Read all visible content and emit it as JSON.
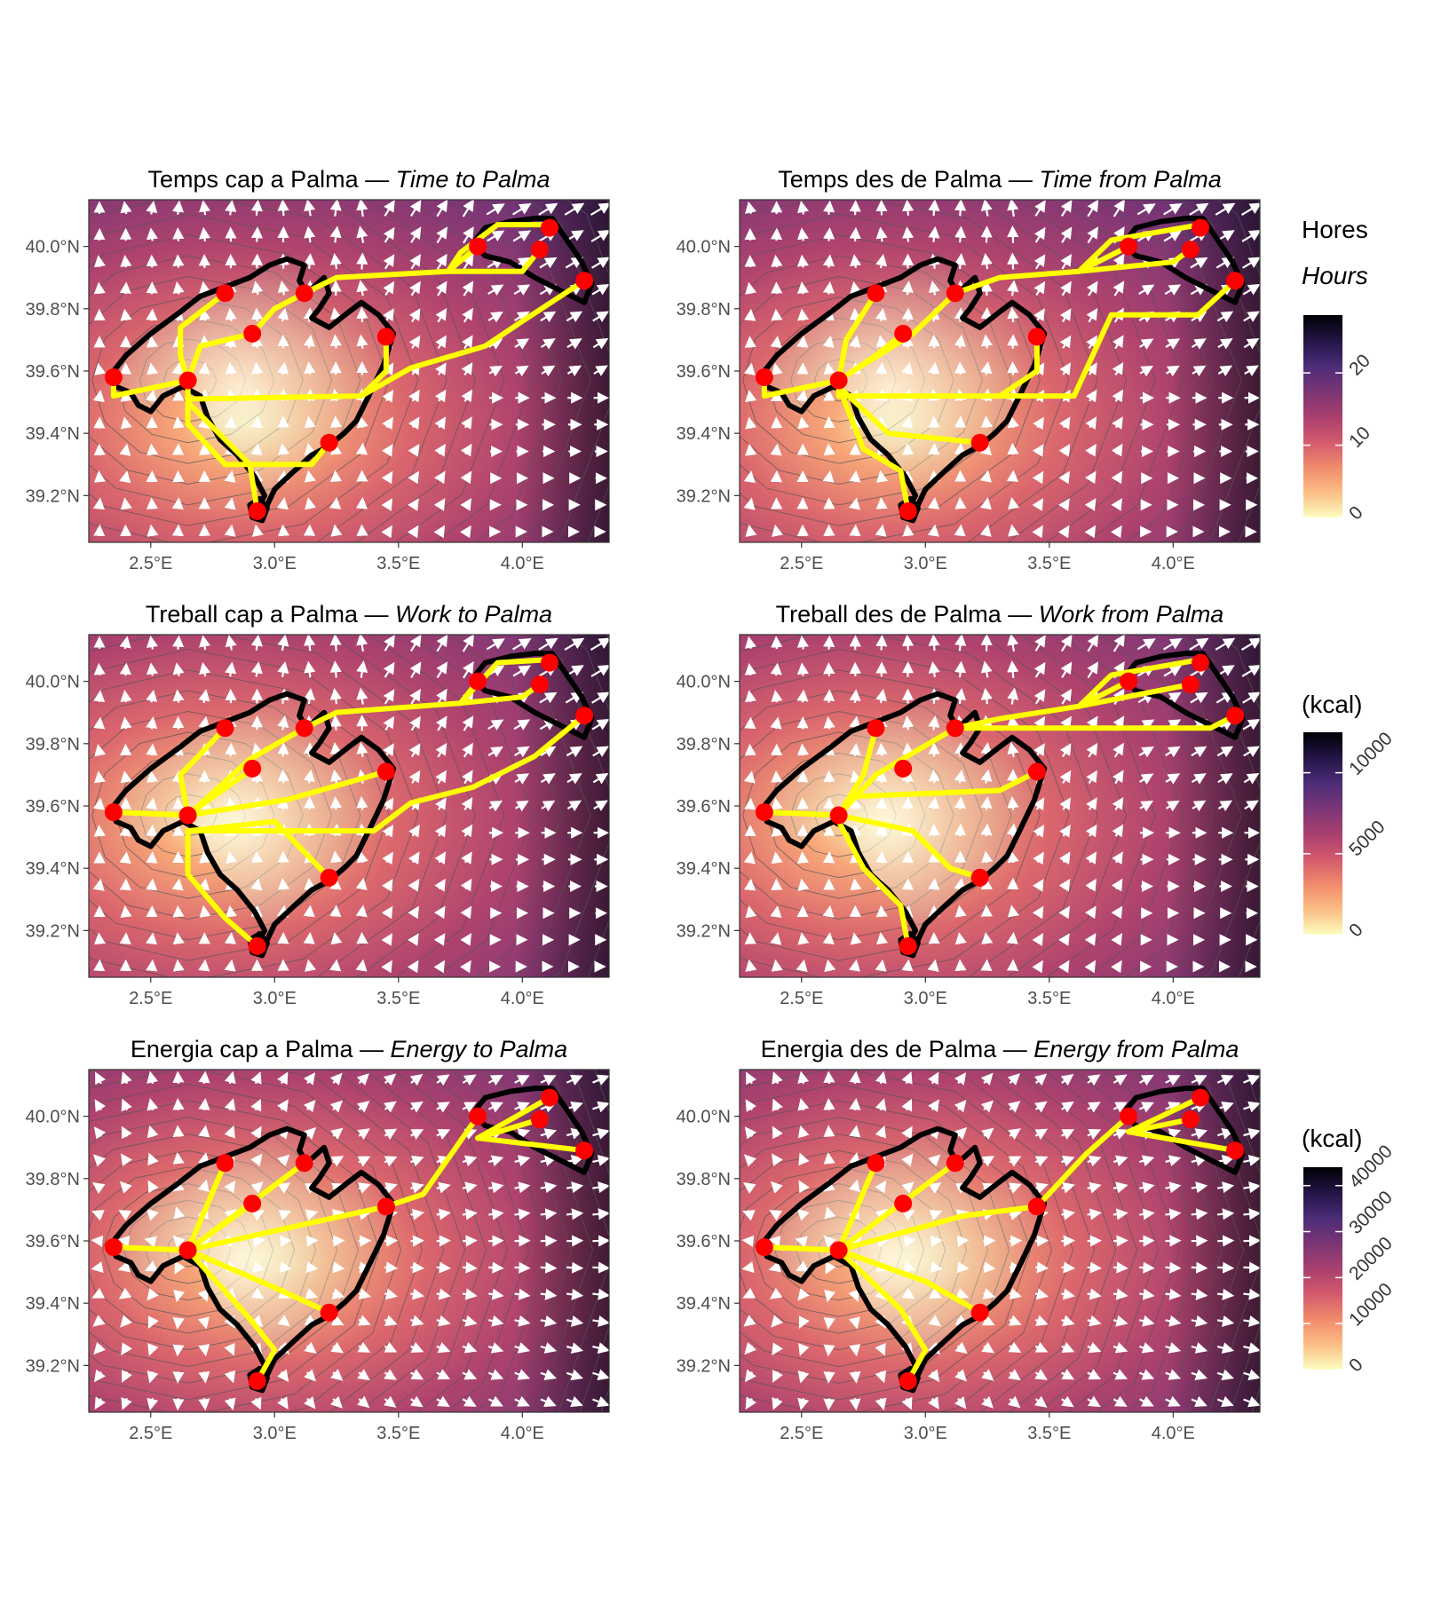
{
  "map": {
    "panels": [
      {
        "id": "time-to",
        "title_ca": "Temps cap a Palma",
        "title_en": "Time to Palma",
        "variable": "time",
        "direction": "to"
      },
      {
        "id": "time-from",
        "title_ca": "Temps des de Palma",
        "title_en": "Time from Palma",
        "variable": "time",
        "direction": "from"
      },
      {
        "id": "work-to",
        "title_ca": "Treball cap a Palma",
        "title_en": "Work to Palma",
        "variable": "work",
        "direction": "to"
      },
      {
        "id": "work-from",
        "title_ca": "Treball des de Palma",
        "title_en": "Work from Palma",
        "variable": "work",
        "direction": "from"
      },
      {
        "id": "energy-to",
        "title_ca": "Energia cap a Palma",
        "title_en": "Energy to Palma",
        "variable": "energy",
        "direction": "to"
      },
      {
        "id": "energy-from",
        "title_ca": "Energia des de Palma",
        "title_en": "Energy from Palma",
        "variable": "energy",
        "direction": "from"
      }
    ],
    "separator": "—",
    "x_ticks": [
      "2.5°E",
      "3.0°E",
      "3.5°E",
      "4.0°E"
    ],
    "y_ticks": [
      "40.0°N",
      "39.8°N",
      "39.6°N",
      "39.4°N",
      "39.2°N"
    ],
    "extent": {
      "lon": [
        2.25,
        4.35
      ],
      "lat": [
        39.05,
        40.15
      ]
    },
    "legends": [
      {
        "id": "hours",
        "title_ca": "Hores",
        "title_en": "Hours",
        "ticks": [
          "0",
          "10",
          "20"
        ],
        "tick_values": [
          0,
          10,
          20
        ],
        "max": 28
      },
      {
        "id": "work",
        "title_ca": "(kcal)",
        "title_en": "",
        "ticks": [
          "0",
          "5000",
          "10000"
        ],
        "tick_values": [
          0,
          5000,
          10000
        ],
        "max": 12500
      },
      {
        "id": "energy",
        "title_ca": "(kcal)",
        "title_en": "",
        "ticks": [
          "0",
          "10000",
          "20000",
          "30000",
          "40000"
        ],
        "tick_values": [
          0,
          10000,
          20000,
          30000,
          40000
        ],
        "max": 44000
      }
    ],
    "colors": {
      "scale": [
        "#fcfdbf",
        "#fcbd84",
        "#f08a6c",
        "#d3596d",
        "#a83f6e",
        "#7a3575",
        "#4b2c78",
        "#231445",
        "#000004"
      ],
      "route": "#ffff00",
      "city": "#ff0000",
      "coast": "#000000",
      "arrow": "#ffffff",
      "contour": "#555555"
    },
    "palma": {
      "lon": 2.65,
      "lat": 39.57
    },
    "destinations": [
      {
        "lon": 2.35,
        "lat": 39.58
      },
      {
        "lon": 2.8,
        "lat": 39.85
      },
      {
        "lon": 2.91,
        "lat": 39.72
      },
      {
        "lon": 3.12,
        "lat": 39.85
      },
      {
        "lon": 3.45,
        "lat": 39.71
      },
      {
        "lon": 3.22,
        "lat": 39.37
      },
      {
        "lon": 2.93,
        "lat": 39.15
      },
      {
        "lon": 3.82,
        "lat": 40.0
      },
      {
        "lon": 4.07,
        "lat": 39.99
      },
      {
        "lon": 4.11,
        "lat": 40.06
      },
      {
        "lon": 4.25,
        "lat": 39.89
      }
    ],
    "routes": {
      "time-to": [
        [
          [
            2.65,
            39.57
          ],
          [
            2.35,
            39.52
          ],
          [
            2.35,
            39.58
          ]
        ],
        [
          [
            2.65,
            39.57
          ],
          [
            2.62,
            39.65
          ],
          [
            2.62,
            39.74
          ],
          [
            2.8,
            39.85
          ]
        ],
        [
          [
            2.65,
            39.57
          ],
          [
            2.7,
            39.68
          ],
          [
            2.91,
            39.72
          ]
        ],
        [
          [
            2.91,
            39.72
          ],
          [
            3.0,
            39.8
          ],
          [
            3.12,
            39.85
          ]
        ],
        [
          [
            3.12,
            39.85
          ],
          [
            3.25,
            39.9
          ],
          [
            3.7,
            39.92
          ],
          [
            3.82,
            40.0
          ]
        ],
        [
          [
            3.7,
            39.92
          ],
          [
            3.75,
            39.98
          ],
          [
            3.9,
            40.07
          ],
          [
            4.11,
            40.07
          ]
        ],
        [
          [
            3.7,
            39.92
          ],
          [
            4.0,
            39.92
          ],
          [
            4.07,
            39.99
          ]
        ],
        [
          [
            2.65,
            39.57
          ],
          [
            2.65,
            39.51
          ],
          [
            3.35,
            39.52
          ],
          [
            3.45,
            39.6
          ],
          [
            3.45,
            39.71
          ]
        ],
        [
          [
            3.35,
            39.52
          ],
          [
            3.55,
            39.61
          ],
          [
            3.85,
            39.68
          ],
          [
            4.0,
            39.76
          ],
          [
            4.25,
            39.89
          ]
        ],
        [
          [
            2.65,
            39.57
          ],
          [
            2.65,
            39.43
          ],
          [
            2.8,
            39.3
          ],
          [
            3.15,
            39.3
          ],
          [
            3.22,
            39.37
          ]
        ],
        [
          [
            2.65,
            39.5
          ],
          [
            2.9,
            39.3
          ],
          [
            2.93,
            39.15
          ]
        ]
      ],
      "time-from": [
        [
          [
            2.65,
            39.57
          ],
          [
            2.35,
            39.52
          ],
          [
            2.35,
            39.58
          ]
        ],
        [
          [
            2.65,
            39.57
          ],
          [
            2.68,
            39.7
          ],
          [
            2.8,
            39.85
          ]
        ],
        [
          [
            2.65,
            39.57
          ],
          [
            2.8,
            39.65
          ],
          [
            2.91,
            39.72
          ]
        ],
        [
          [
            2.65,
            39.57
          ],
          [
            2.95,
            39.72
          ],
          [
            3.12,
            39.85
          ]
        ],
        [
          [
            3.12,
            39.85
          ],
          [
            3.3,
            39.9
          ],
          [
            3.62,
            39.92
          ],
          [
            3.75,
            40.02
          ],
          [
            4.11,
            40.07
          ]
        ],
        [
          [
            3.62,
            39.92
          ],
          [
            3.82,
            40.0
          ]
        ],
        [
          [
            3.62,
            39.92
          ],
          [
            4.0,
            39.95
          ],
          [
            4.07,
            39.99
          ]
        ],
        [
          [
            2.65,
            39.57
          ],
          [
            2.65,
            39.52
          ],
          [
            3.3,
            39.52
          ],
          [
            3.45,
            39.6
          ],
          [
            3.45,
            39.71
          ]
        ],
        [
          [
            3.3,
            39.52
          ],
          [
            3.6,
            39.52
          ],
          [
            3.75,
            39.78
          ],
          [
            4.1,
            39.78
          ],
          [
            4.25,
            39.89
          ]
        ],
        [
          [
            2.65,
            39.55
          ],
          [
            2.85,
            39.4
          ],
          [
            3.22,
            39.37
          ]
        ],
        [
          [
            2.65,
            39.55
          ],
          [
            2.75,
            39.35
          ],
          [
            2.9,
            39.28
          ],
          [
            2.93,
            39.15
          ]
        ]
      ],
      "work-to": [
        [
          [
            2.65,
            39.57
          ],
          [
            2.35,
            39.58
          ]
        ],
        [
          [
            2.65,
            39.57
          ],
          [
            2.62,
            39.7
          ],
          [
            2.8,
            39.85
          ]
        ],
        [
          [
            2.65,
            39.57
          ],
          [
            2.91,
            39.72
          ]
        ],
        [
          [
            2.65,
            39.57
          ],
          [
            2.9,
            39.75
          ],
          [
            3.12,
            39.85
          ]
        ],
        [
          [
            3.12,
            39.85
          ],
          [
            3.25,
            39.9
          ],
          [
            3.75,
            39.93
          ],
          [
            3.82,
            40.0
          ]
        ],
        [
          [
            3.75,
            39.93
          ],
          [
            3.9,
            40.06
          ],
          [
            4.11,
            40.07
          ]
        ],
        [
          [
            3.75,
            39.93
          ],
          [
            4.0,
            39.95
          ],
          [
            4.07,
            39.99
          ]
        ],
        [
          [
            2.65,
            39.57
          ],
          [
            3.05,
            39.62
          ],
          [
            3.45,
            39.71
          ]
        ],
        [
          [
            2.65,
            39.52
          ],
          [
            3.4,
            39.52
          ],
          [
            3.55,
            39.61
          ],
          [
            3.8,
            39.66
          ],
          [
            4.05,
            39.76
          ],
          [
            4.25,
            39.89
          ]
        ],
        [
          [
            2.65,
            39.52
          ],
          [
            3.0,
            39.55
          ],
          [
            3.22,
            39.37
          ]
        ],
        [
          [
            2.65,
            39.52
          ],
          [
            2.65,
            39.38
          ],
          [
            2.8,
            39.24
          ],
          [
            2.93,
            39.15
          ]
        ]
      ],
      "work-from": [
        [
          [
            2.65,
            39.57
          ],
          [
            2.35,
            39.58
          ]
        ],
        [
          [
            2.65,
            39.57
          ],
          [
            2.75,
            39.7
          ],
          [
            2.8,
            39.85
          ]
        ],
        [
          [
            2.65,
            39.57
          ],
          [
            2.8,
            39.7
          ],
          [
            3.12,
            39.85
          ]
        ],
        [
          [
            3.12,
            39.85
          ],
          [
            3.3,
            39.88
          ],
          [
            3.62,
            39.92
          ],
          [
            3.75,
            40.02
          ],
          [
            4.11,
            40.07
          ]
        ],
        [
          [
            3.62,
            39.92
          ],
          [
            3.82,
            40.0
          ]
        ],
        [
          [
            3.62,
            39.92
          ],
          [
            4.07,
            39.99
          ]
        ],
        [
          [
            3.12,
            39.85
          ],
          [
            4.15,
            39.85
          ],
          [
            4.25,
            39.89
          ]
        ],
        [
          [
            2.65,
            39.57
          ],
          [
            2.7,
            39.63
          ],
          [
            3.3,
            39.65
          ],
          [
            3.45,
            39.71
          ]
        ],
        [
          [
            2.65,
            39.57
          ],
          [
            2.95,
            39.52
          ],
          [
            3.1,
            39.4
          ],
          [
            3.22,
            39.37
          ]
        ],
        [
          [
            2.65,
            39.55
          ],
          [
            2.75,
            39.4
          ],
          [
            2.9,
            39.28
          ],
          [
            2.93,
            39.15
          ]
        ]
      ],
      "energy-to": [
        [
          [
            2.65,
            39.57
          ],
          [
            2.35,
            39.58
          ]
        ],
        [
          [
            2.65,
            39.57
          ],
          [
            2.8,
            39.85
          ]
        ],
        [
          [
            2.65,
            39.57
          ],
          [
            2.91,
            39.72
          ]
        ],
        [
          [
            2.65,
            39.57
          ],
          [
            3.12,
            39.85
          ]
        ],
        [
          [
            2.65,
            39.57
          ],
          [
            3.1,
            39.65
          ],
          [
            3.45,
            39.71
          ]
        ],
        [
          [
            3.45,
            39.71
          ],
          [
            3.6,
            39.75
          ],
          [
            3.82,
            40.0
          ]
        ],
        [
          [
            3.82,
            39.93
          ],
          [
            4.07,
            39.99
          ]
        ],
        [
          [
            3.82,
            39.93
          ],
          [
            4.11,
            40.06
          ]
        ],
        [
          [
            3.82,
            39.93
          ],
          [
            4.25,
            39.89
          ]
        ],
        [
          [
            2.65,
            39.57
          ],
          [
            3.0,
            39.45
          ],
          [
            3.22,
            39.37
          ]
        ],
        [
          [
            2.65,
            39.57
          ],
          [
            2.9,
            39.35
          ],
          [
            3.0,
            39.25
          ],
          [
            2.93,
            39.15
          ]
        ]
      ],
      "energy-from": [
        [
          [
            2.65,
            39.57
          ],
          [
            2.35,
            39.58
          ]
        ],
        [
          [
            2.65,
            39.57
          ],
          [
            2.8,
            39.85
          ]
        ],
        [
          [
            2.65,
            39.57
          ],
          [
            3.12,
            39.85
          ]
        ],
        [
          [
            2.65,
            39.57
          ],
          [
            3.15,
            39.68
          ],
          [
            3.45,
            39.71
          ]
        ],
        [
          [
            3.45,
            39.71
          ],
          [
            3.65,
            39.88
          ],
          [
            3.82,
            40.0
          ]
        ],
        [
          [
            3.82,
            39.95
          ],
          [
            4.11,
            40.06
          ]
        ],
        [
          [
            3.82,
            39.95
          ],
          [
            4.07,
            39.99
          ]
        ],
        [
          [
            3.82,
            39.95
          ],
          [
            4.25,
            39.89
          ]
        ],
        [
          [
            2.65,
            39.57
          ],
          [
            3.0,
            39.47
          ],
          [
            3.22,
            39.37
          ]
        ],
        [
          [
            2.65,
            39.57
          ],
          [
            2.9,
            39.38
          ],
          [
            3.0,
            39.25
          ],
          [
            2.93,
            39.15
          ]
        ]
      ]
    }
  }
}
